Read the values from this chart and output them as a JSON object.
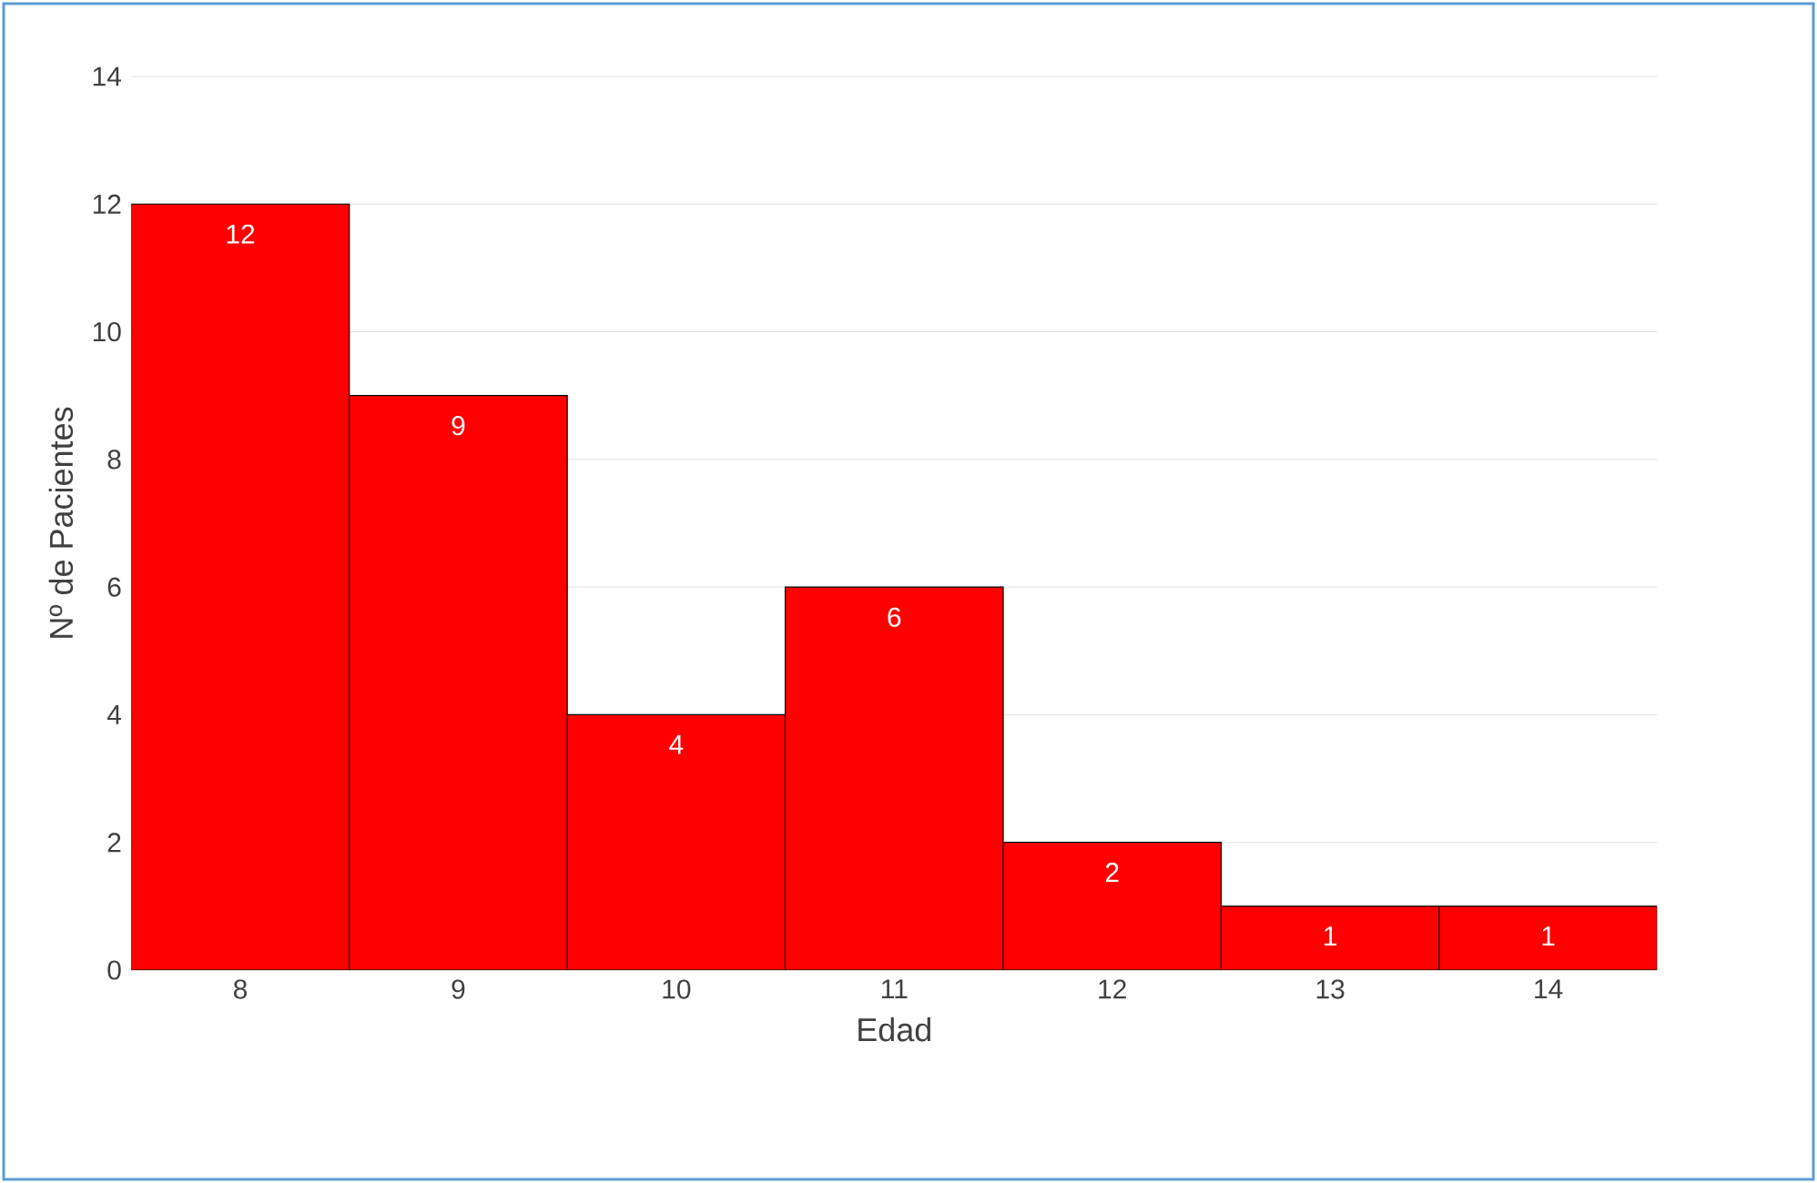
{
  "chart_data": {
    "type": "bar",
    "xlabel": "Edad",
    "ylabel": "Nº de Pacientes",
    "categories": [
      "8",
      "9",
      "10",
      "11",
      "12",
      "13",
      "14"
    ],
    "values": [
      12,
      9,
      4,
      6,
      2,
      1,
      1
    ],
    "color": "#ff0000",
    "ylim": [
      0,
      14
    ],
    "yticks": [
      0,
      2,
      4,
      6,
      8,
      10,
      12,
      14
    ],
    "grid": "y",
    "data_labels": true
  }
}
